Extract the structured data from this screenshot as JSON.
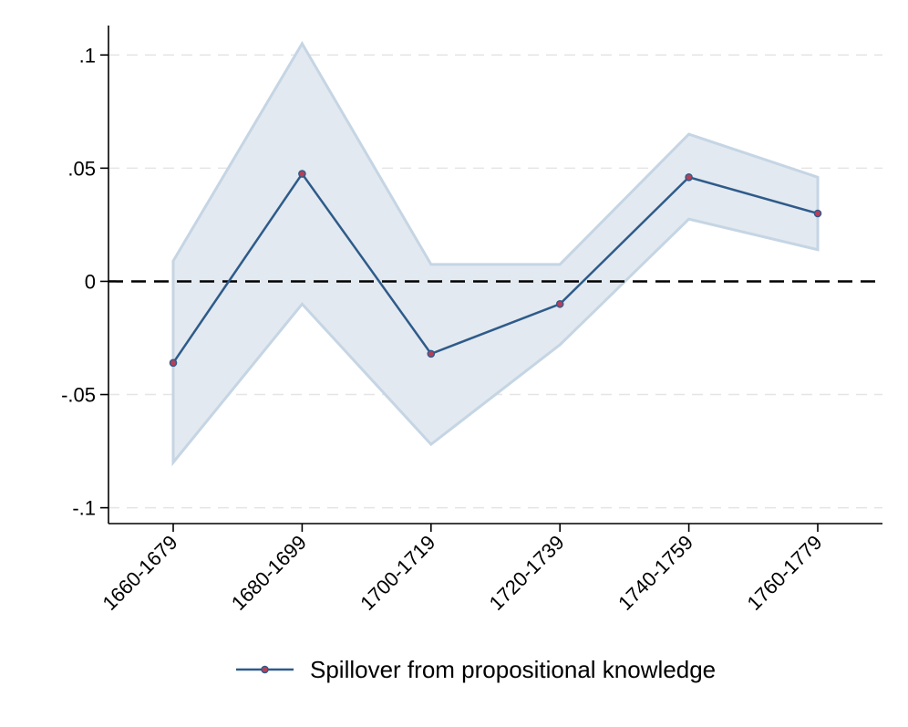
{
  "chart_data": {
    "type": "line",
    "categories": [
      "1660-1679",
      "1680-1699",
      "1700-1719",
      "1720-1739",
      "1740-1759",
      "1760-1779"
    ],
    "series": [
      {
        "name": "Spillover from propositional knowledge",
        "values": [
          -0.036,
          0.0475,
          -0.032,
          -0.01,
          0.046,
          0.03
        ],
        "ci_upper": [
          0.009,
          0.105,
          0.0075,
          0.0075,
          0.065,
          0.046
        ],
        "ci_lower": [
          -0.08,
          -0.01,
          -0.072,
          -0.028,
          0.0275,
          0.014
        ]
      }
    ],
    "ylim": [
      -0.107,
      0.113
    ],
    "yticks": [
      0.1,
      0.05,
      0,
      -0.05,
      -0.1
    ],
    "ytick_labels": [
      ".1",
      ".05",
      "0",
      "-.05",
      "-.1"
    ],
    "reference_line": 0,
    "grid": true,
    "legend_position": "bottom",
    "colors": {
      "line": "#2e5b8a",
      "marker_fill": "#b5405a",
      "ci_fill": "#e3e9f0",
      "ci_edge": "#c5d5e4",
      "grid": "#e5e5e5"
    }
  }
}
